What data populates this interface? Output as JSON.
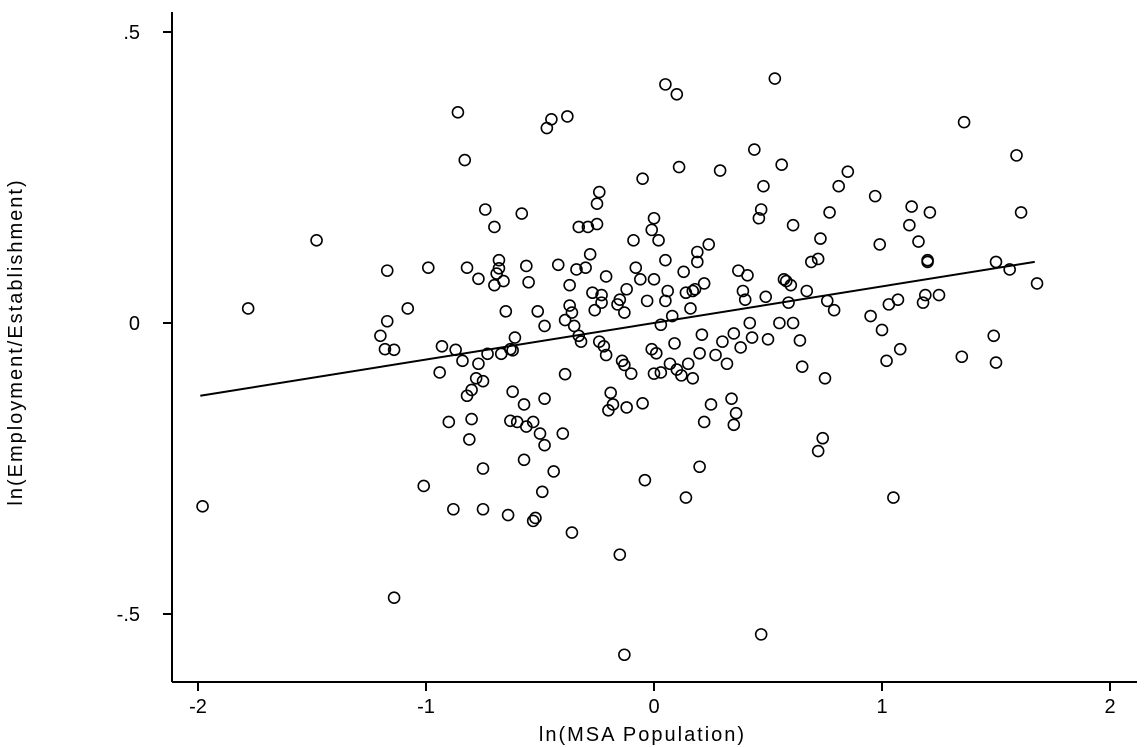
{
  "chart_data": {
    "type": "scatter",
    "title": "",
    "xlabel": "ln(MSA Population)",
    "ylabel": "ln(Employment/Establishment)",
    "xlim": [
      -2.1,
      2.1
    ],
    "ylim": [
      -0.6,
      0.55
    ],
    "x_ticks": [
      {
        "value": -2,
        "label": "-2"
      },
      {
        "value": -1,
        "label": "-1"
      },
      {
        "value": 0,
        "label": "0"
      },
      {
        "value": 1,
        "label": "1"
      },
      {
        "value": 2,
        "label": "2"
      }
    ],
    "y_ticks": [
      {
        "value": -0.5,
        "label": "-.5"
      },
      {
        "value": 0,
        "label": "0"
      },
      {
        "value": 0.5,
        "label": ".5"
      }
    ],
    "grid": false,
    "legend": "none",
    "marker": "hollow-circle",
    "colors": {
      "marker": "#000000",
      "fit_line": "#000000"
    },
    "fit_line": {
      "x": [
        -1.99,
        1.67
      ],
      "y": [
        -0.125,
        0.105
      ]
    },
    "points": [
      [
        -1.98,
        -0.315
      ],
      [
        -1.78,
        0.025
      ],
      [
        -1.48,
        0.142
      ],
      [
        -1.2,
        -0.022
      ],
      [
        -1.18,
        -0.045
      ],
      [
        -1.17,
        0.09
      ],
      [
        -1.17,
        0.003
      ],
      [
        -1.14,
        -0.046
      ],
      [
        -1.14,
        -0.472
      ],
      [
        -1.08,
        0.025
      ],
      [
        -1.01,
        -0.28
      ],
      [
        -0.99,
        0.095
      ],
      [
        -0.94,
        -0.085
      ],
      [
        -0.93,
        -0.04
      ],
      [
        -0.9,
        -0.17
      ],
      [
        -0.88,
        -0.32
      ],
      [
        -0.87,
        -0.046
      ],
      [
        -0.86,
        0.362
      ],
      [
        -0.84,
        -0.065
      ],
      [
        -0.83,
        0.28
      ],
      [
        -0.82,
        0.095
      ],
      [
        -0.82,
        -0.125
      ],
      [
        -0.81,
        -0.2
      ],
      [
        -0.8,
        -0.115
      ],
      [
        -0.8,
        -0.165
      ],
      [
        -0.78,
        -0.095
      ],
      [
        -0.77,
        0.076
      ],
      [
        -0.77,
        -0.07
      ],
      [
        -0.75,
        -0.1
      ],
      [
        -0.75,
        -0.25
      ],
      [
        -0.75,
        -0.32
      ],
      [
        -0.74,
        0.195
      ],
      [
        -0.73,
        -0.053
      ],
      [
        -0.7,
        0.165
      ],
      [
        -0.7,
        0.065
      ],
      [
        -0.69,
        0.085
      ],
      [
        -0.68,
        0.108
      ],
      [
        -0.68,
        0.094
      ],
      [
        -0.67,
        -0.053
      ],
      [
        -0.66,
        0.072
      ],
      [
        -0.65,
        0.02
      ],
      [
        -0.64,
        -0.33
      ],
      [
        -0.63,
        -0.045
      ],
      [
        -0.63,
        -0.168
      ],
      [
        -0.62,
        -0.118
      ],
      [
        -0.62,
        -0.047
      ],
      [
        -0.61,
        -0.025
      ],
      [
        -0.6,
        -0.17
      ],
      [
        -0.58,
        0.188
      ],
      [
        -0.57,
        -0.235
      ],
      [
        -0.57,
        -0.14
      ],
      [
        -0.56,
        0.098
      ],
      [
        -0.56,
        -0.178
      ],
      [
        -0.55,
        0.07
      ],
      [
        -0.53,
        -0.17
      ],
      [
        -0.53,
        -0.34
      ],
      [
        -0.52,
        -0.335
      ],
      [
        -0.51,
        0.02
      ],
      [
        -0.5,
        -0.19
      ],
      [
        -0.49,
        -0.29
      ],
      [
        -0.48,
        -0.13
      ],
      [
        -0.48,
        -0.21
      ],
      [
        -0.48,
        -0.005
      ],
      [
        -0.47,
        0.335
      ],
      [
        -0.45,
        0.35
      ],
      [
        -0.44,
        -0.255
      ],
      [
        -0.42,
        0.1
      ],
      [
        -0.4,
        -0.19
      ],
      [
        -0.39,
        0.005
      ],
      [
        -0.39,
        -0.088
      ],
      [
        -0.38,
        0.355
      ],
      [
        -0.37,
        0.03
      ],
      [
        -0.37,
        0.065
      ],
      [
        -0.36,
        -0.36
      ],
      [
        -0.36,
        0.018
      ],
      [
        -0.35,
        -0.005
      ],
      [
        -0.34,
        0.092
      ],
      [
        -0.33,
        -0.022
      ],
      [
        -0.33,
        0.165
      ],
      [
        -0.32,
        -0.032
      ],
      [
        -0.3,
        0.095
      ],
      [
        -0.29,
        0.165
      ],
      [
        -0.28,
        0.118
      ],
      [
        -0.27,
        0.052
      ],
      [
        -0.26,
        0.022
      ],
      [
        -0.25,
        0.17
      ],
      [
        -0.25,
        0.205
      ],
      [
        -0.24,
        0.225
      ],
      [
        -0.24,
        -0.032
      ],
      [
        -0.23,
        0.048
      ],
      [
        -0.23,
        0.035
      ],
      [
        -0.22,
        -0.04
      ],
      [
        -0.21,
        0.08
      ],
      [
        -0.21,
        -0.055
      ],
      [
        -0.2,
        -0.15
      ],
      [
        -0.19,
        -0.12
      ],
      [
        -0.18,
        -0.14
      ],
      [
        -0.16,
        0.032
      ],
      [
        -0.15,
        0.04
      ],
      [
        -0.15,
        -0.398
      ],
      [
        -0.14,
        -0.065
      ],
      [
        -0.13,
        0.018
      ],
      [
        -0.13,
        -0.072
      ],
      [
        -0.13,
        -0.57
      ],
      [
        -0.12,
        -0.145
      ],
      [
        -0.12,
        0.058
      ],
      [
        -0.1,
        -0.087
      ],
      [
        -0.09,
        0.142
      ],
      [
        -0.08,
        0.095
      ],
      [
        -0.06,
        0.075
      ],
      [
        -0.05,
        0.248
      ],
      [
        -0.05,
        -0.138
      ],
      [
        -0.04,
        -0.27
      ],
      [
        -0.03,
        0.038
      ],
      [
        -0.01,
        0.16
      ],
      [
        -0.01,
        -0.045
      ],
      [
        0.0,
        0.18
      ],
      [
        0.0,
        -0.087
      ],
      [
        0.0,
        0.075
      ],
      [
        0.01,
        -0.052
      ],
      [
        0.02,
        0.142
      ],
      [
        0.03,
        -0.085
      ],
      [
        0.03,
        -0.003
      ],
      [
        0.05,
        0.41
      ],
      [
        0.05,
        0.108
      ],
      [
        0.05,
        0.038
      ],
      [
        0.06,
        0.055
      ],
      [
        0.07,
        -0.07
      ],
      [
        0.08,
        0.012
      ],
      [
        0.09,
        -0.035
      ],
      [
        0.1,
        0.393
      ],
      [
        0.1,
        -0.08
      ],
      [
        0.11,
        0.268
      ],
      [
        0.12,
        -0.09
      ],
      [
        0.13,
        0.088
      ],
      [
        0.14,
        -0.3
      ],
      [
        0.14,
        0.052
      ],
      [
        0.15,
        -0.07
      ],
      [
        0.16,
        0.025
      ],
      [
        0.17,
        0.055
      ],
      [
        0.17,
        -0.095
      ],
      [
        0.18,
        0.058
      ],
      [
        0.19,
        0.122
      ],
      [
        0.19,
        0.105
      ],
      [
        0.2,
        -0.052
      ],
      [
        0.2,
        -0.247
      ],
      [
        0.21,
        -0.02
      ],
      [
        0.22,
        0.068
      ],
      [
        0.22,
        -0.17
      ],
      [
        0.24,
        0.135
      ],
      [
        0.25,
        -0.14
      ],
      [
        0.27,
        -0.055
      ],
      [
        0.29,
        0.262
      ],
      [
        0.3,
        -0.032
      ],
      [
        0.32,
        -0.07
      ],
      [
        0.34,
        -0.13
      ],
      [
        0.35,
        -0.018
      ],
      [
        0.35,
        -0.175
      ],
      [
        0.36,
        -0.155
      ],
      [
        0.37,
        0.09
      ],
      [
        0.38,
        -0.042
      ],
      [
        0.39,
        0.055
      ],
      [
        0.4,
        0.04
      ],
      [
        0.41,
        0.082
      ],
      [
        0.42,
        0.0
      ],
      [
        0.43,
        -0.025
      ],
      [
        0.44,
        0.298
      ],
      [
        0.46,
        0.18
      ],
      [
        0.47,
        -0.535
      ],
      [
        0.47,
        0.195
      ],
      [
        0.48,
        0.235
      ],
      [
        0.49,
        0.045
      ],
      [
        0.5,
        -0.028
      ],
      [
        0.53,
        0.42
      ],
      [
        0.55,
        0.0
      ],
      [
        0.56,
        0.272
      ],
      [
        0.57,
        0.075
      ],
      [
        0.58,
        0.072
      ],
      [
        0.59,
        0.035
      ],
      [
        0.6,
        0.065
      ],
      [
        0.61,
        0.0
      ],
      [
        0.61,
        0.168
      ],
      [
        0.64,
        -0.03
      ],
      [
        0.65,
        -0.075
      ],
      [
        0.67,
        0.055
      ],
      [
        0.69,
        0.105
      ],
      [
        0.72,
        0.11
      ],
      [
        0.72,
        -0.22
      ],
      [
        0.73,
        0.145
      ],
      [
        0.74,
        -0.198
      ],
      [
        0.75,
        -0.095
      ],
      [
        0.76,
        0.038
      ],
      [
        0.77,
        0.19
      ],
      [
        0.79,
        0.022
      ],
      [
        0.81,
        0.235
      ],
      [
        0.85,
        0.26
      ],
      [
        0.95,
        0.012
      ],
      [
        0.97,
        0.218
      ],
      [
        0.99,
        0.135
      ],
      [
        1.0,
        -0.012
      ],
      [
        1.02,
        -0.065
      ],
      [
        1.03,
        0.032
      ],
      [
        1.05,
        -0.3
      ],
      [
        1.07,
        0.04
      ],
      [
        1.08,
        -0.045
      ],
      [
        1.12,
        0.168
      ],
      [
        1.13,
        0.2
      ],
      [
        1.16,
        0.14
      ],
      [
        1.18,
        0.035
      ],
      [
        1.19,
        0.048
      ],
      [
        1.2,
        0.108
      ],
      [
        1.2,
        0.105
      ],
      [
        1.21,
        0.19
      ],
      [
        1.25,
        0.048
      ],
      [
        1.35,
        -0.058
      ],
      [
        1.36,
        0.345
      ],
      [
        1.49,
        -0.022
      ],
      [
        1.5,
        0.105
      ],
      [
        1.5,
        -0.068
      ],
      [
        1.56,
        0.092
      ],
      [
        1.59,
        0.288
      ],
      [
        1.61,
        0.19
      ],
      [
        1.68,
        0.068
      ]
    ]
  }
}
